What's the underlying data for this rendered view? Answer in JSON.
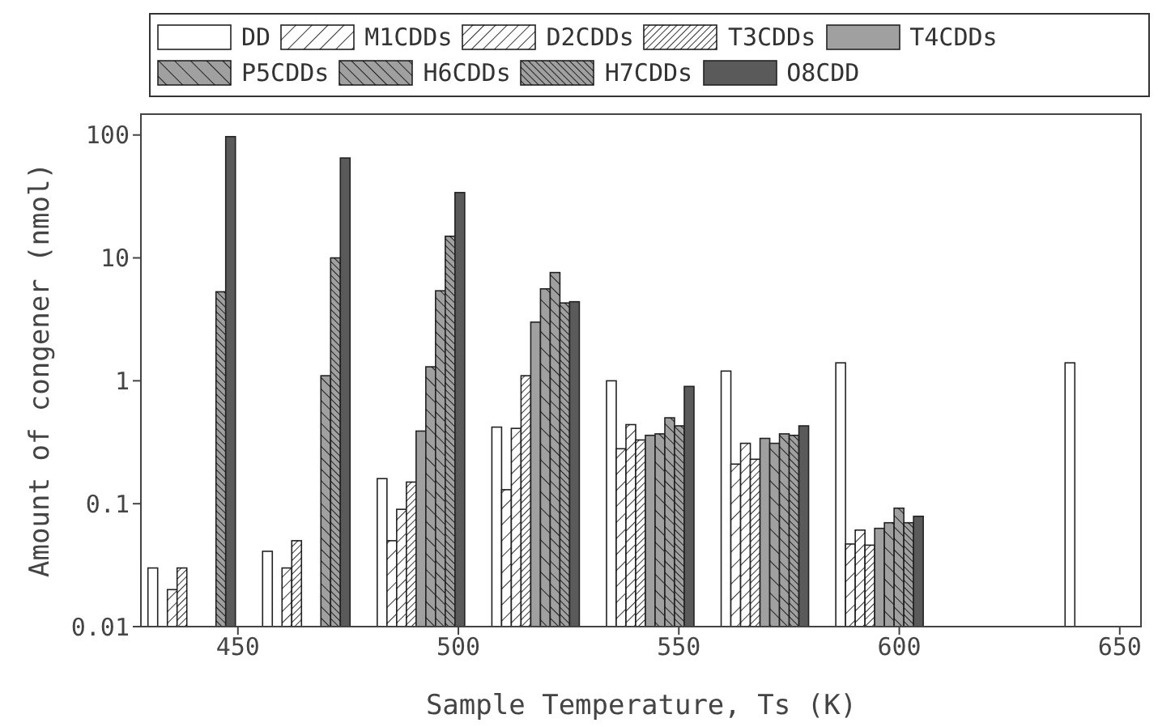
{
  "chart_data": {
    "type": "bar",
    "xlabel": "Sample Temperature, Ts (K)",
    "ylabel": "Amount of congener (nmol)",
    "x": [
      440,
      466,
      492,
      518,
      544,
      570,
      596,
      648
    ],
    "xlim": [
      428,
      655
    ],
    "xticks": [
      450,
      500,
      550,
      600,
      650
    ],
    "ylim": [
      0.01,
      150
    ],
    "yticks": [
      0.01,
      0.1,
      1,
      10,
      100
    ],
    "log": true,
    "grid": false,
    "legend": "top",
    "series": [
      {
        "name": "DD",
        "color": "#ffffff",
        "values": [
          0.03,
          0.041,
          0.16,
          0.42,
          1.0,
          1.2,
          1.4,
          1.4
        ]
      },
      {
        "name": "M1CDDs",
        "color": "#ffffff",
        "values": [
          null,
          null,
          0.05,
          0.13,
          0.28,
          0.21,
          0.047,
          null
        ]
      },
      {
        "name": "D2CDDs",
        "color": "#ffffff",
        "values": [
          0.02,
          0.03,
          0.09,
          0.41,
          0.44,
          0.31,
          0.061,
          null
        ]
      },
      {
        "name": "T3CDDs",
        "color": "#ffffff",
        "values": [
          0.03,
          0.05,
          0.15,
          1.1,
          0.33,
          0.23,
          0.046,
          null
        ]
      },
      {
        "name": "T4CDDs",
        "color": "#a0a0a0",
        "values": [
          null,
          null,
          0.39,
          3.0,
          0.36,
          0.34,
          0.063,
          null
        ]
      },
      {
        "name": "P5CDDs",
        "color": "#a0a0a0",
        "values": [
          null,
          null,
          1.3,
          5.6,
          0.37,
          0.31,
          0.07,
          null
        ]
      },
      {
        "name": "H6CDDs",
        "color": "#a0a0a0",
        "values": [
          null,
          1.1,
          5.4,
          7.6,
          0.5,
          0.37,
          0.092,
          null
        ]
      },
      {
        "name": "H7CDDs",
        "color": "#a0a0a0",
        "values": [
          5.3,
          10,
          15,
          4.3,
          0.43,
          0.36,
          0.07,
          null
        ]
      },
      {
        "name": "O8CDD",
        "color": "#5a5a5a",
        "values": [
          97,
          65,
          34,
          4.4,
          0.9,
          0.43,
          0.079,
          null
        ]
      }
    ]
  }
}
